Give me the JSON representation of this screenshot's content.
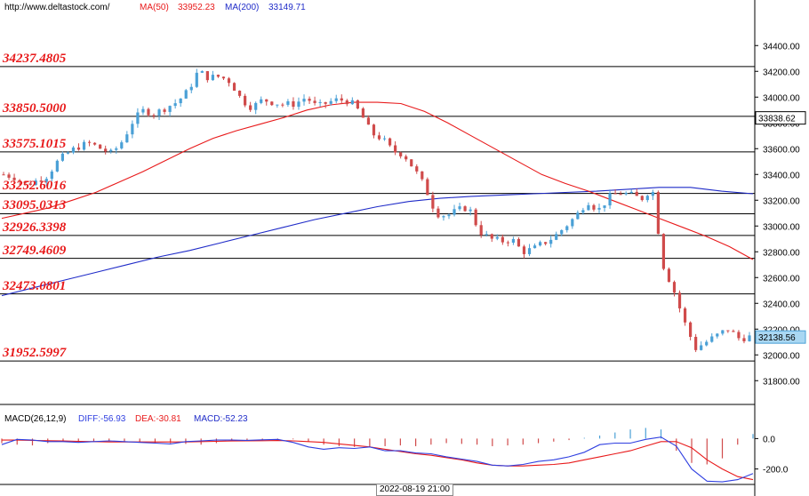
{
  "header": {
    "url": "http://www.deltastock.com/",
    "ma50_label": "MA(50)",
    "ma50_value": "33952.23",
    "ma200_label": "MA(200)",
    "ma200_value": "33149.71"
  },
  "macd_header": {
    "title": "MACD(26,12,9)",
    "diff": "DIFF:-56.93",
    "dea": "DEA:-30.81",
    "macd": "MACD:-52.23"
  },
  "time_label": "2022-08-19 21:00",
  "current_price_tag": "32138.56",
  "ma50_price_tag": "33838.62",
  "colors": {
    "bull": "#4aa0d6",
    "bear": "#d04b4b",
    "ma50": "#e8191a",
    "ma200": "#1f2bc8",
    "level_label": "#e8191a",
    "diff": "#2f3fe0",
    "dea": "#e8191a"
  },
  "chart_data": [
    {
      "type": "candlestick",
      "ylim": [
        31650,
        34650
      ],
      "y_ticks": [
        "31800.00",
        "32000.00",
        "32200.00",
        "32400.00",
        "32600.00",
        "32800.00",
        "33000.00",
        "33200.00",
        "33400.00",
        "33600.00",
        "33800.00",
        "34000.00",
        "34200.00",
        "34400.00"
      ],
      "levels": [
        {
          "value": 34237.4805,
          "label": "34237.4805"
        },
        {
          "value": 33850.5,
          "label": "33850.5000"
        },
        {
          "value": 33575.1015,
          "label": "33575.1015"
        },
        {
          "value": 33252.6016,
          "label": "33252.6016"
        },
        {
          "value": 33095.0313,
          "label": "33095.0313"
        },
        {
          "value": 32926.3398,
          "label": "32926.3398"
        },
        {
          "value": 32749.4609,
          "label": "32749.4609"
        },
        {
          "value": 32473.0801,
          "label": "32473.0801"
        },
        {
          "value": 31952.5997,
          "label": "31952.5997"
        }
      ],
      "close_path": [
        33400,
        33380,
        33320,
        33350,
        33390,
        33500,
        33570,
        33620,
        33640,
        33600,
        33560,
        33660,
        33820,
        33900,
        33870,
        33920,
        33960,
        34040,
        34200,
        34150,
        34160,
        34120,
        33980,
        33920,
        33980,
        33960,
        33940,
        33950,
        34000,
        33920,
        33960,
        33980,
        33970,
        33880,
        33720,
        33680,
        33580,
        33560,
        33440,
        33300,
        33100,
        33080,
        33120,
        33150,
        32960,
        32900,
        32880,
        32900,
        32800,
        32820,
        32870,
        32920,
        33000,
        33080,
        33200,
        33120,
        33220,
        33260,
        33240,
        33210,
        33300,
        32700,
        32500,
        32250,
        32050,
        32100,
        32150,
        32200,
        32130,
        32139
      ],
      "ma50": [
        33060,
        33100,
        33140,
        33200,
        33260,
        33340,
        33420,
        33510,
        33600,
        33680,
        33740,
        33790,
        33840,
        33900,
        33940,
        33960,
        33960,
        33950,
        33890,
        33800,
        33700,
        33600,
        33500,
        33400,
        33330,
        33270,
        33200,
        33130,
        33060,
        32990,
        32920,
        32840,
        32740
      ],
      "ma200": [
        32460,
        32520,
        32580,
        32640,
        32700,
        32760,
        32810,
        32870,
        32930,
        32990,
        33050,
        33100,
        33150,
        33190,
        33215,
        33230,
        33240,
        33250,
        33260,
        33270,
        33285,
        33300,
        33300,
        33270,
        33250
      ]
    },
    {
      "type": "macd",
      "ylim": [
        -290,
        90
      ],
      "y_ticks": [
        "0.0",
        "-200.0"
      ],
      "diff": [
        -40,
        -5,
        -10,
        -20,
        -20,
        -25,
        -20,
        -15,
        -20,
        -25,
        -30,
        -35,
        -20,
        -15,
        -10,
        -10,
        -12,
        -8,
        -5,
        -25,
        -55,
        -70,
        -60,
        -65,
        -55,
        -80,
        -80,
        -95,
        -100,
        -120,
        -135,
        -150,
        -175,
        -180,
        -170,
        -150,
        -140,
        -120,
        -90,
        -40,
        -30,
        -30,
        -5,
        10,
        -50,
        -200,
        -280,
        -285,
        -270,
        -230
      ],
      "dea": [
        -10,
        -10,
        -12,
        -14,
        -16,
        -18,
        -20,
        -22,
        -22,
        -22,
        -22,
        -22,
        -22,
        -20,
        -18,
        -16,
        -15,
        -14,
        -13,
        -15,
        -20,
        -25,
        -35,
        -45,
        -55,
        -70,
        -85,
        -100,
        -110,
        -125,
        -140,
        -160,
        -175,
        -180,
        -180,
        -175,
        -170,
        -160,
        -140,
        -120,
        -100,
        -80,
        -50,
        -20,
        -20,
        -60,
        -140,
        -200,
        -250,
        -270
      ],
      "hist": [
        -30,
        -40,
        -45,
        -30,
        -20,
        -25,
        -20,
        -15,
        -20,
        -25,
        -30,
        -30,
        -35,
        -40,
        -30,
        -15,
        -10,
        -10,
        -8,
        -5,
        -20,
        -40,
        -50,
        -55,
        -55,
        -50,
        -45,
        -50,
        -40,
        -30,
        -35,
        -40,
        -50,
        -45,
        -40,
        -30,
        -20,
        -10,
        5,
        20,
        40,
        60,
        70,
        60,
        -80,
        -160,
        -170,
        -130,
        -40,
        30
      ]
    }
  ]
}
